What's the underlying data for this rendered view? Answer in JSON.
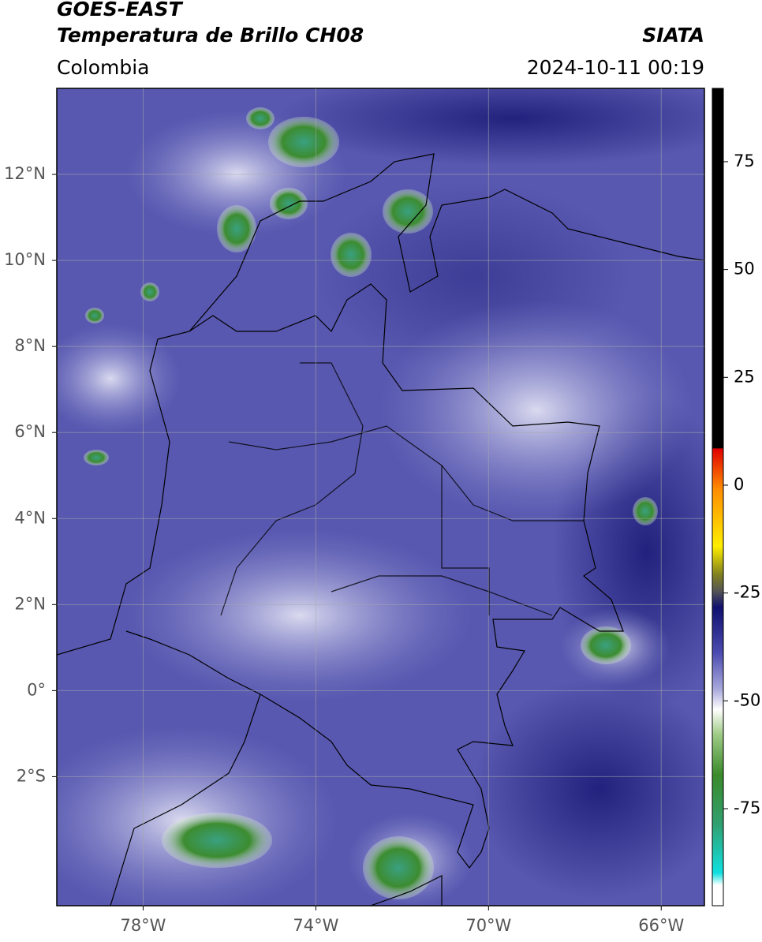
{
  "header": {
    "title": "GOES-EAST",
    "subtitle": "Temperatura de Brillo CH08",
    "region": "Colombia",
    "source": "SIATA",
    "datetime": "2024-10-11 00:19"
  },
  "map": {
    "xlim": [
      -80,
      -65
    ],
    "ylim": [
      -5,
      14
    ],
    "xticks": [
      {
        "value": -78,
        "label": "78°W"
      },
      {
        "value": -74,
        "label": "74°W"
      },
      {
        "value": -70,
        "label": "70°W"
      },
      {
        "value": -66,
        "label": "66°W"
      }
    ],
    "yticks": [
      {
        "value": 12,
        "label": "12°N"
      },
      {
        "value": 10,
        "label": "10°N"
      },
      {
        "value": 8,
        "label": "8°N"
      },
      {
        "value": 6,
        "label": "6°N"
      },
      {
        "value": 4,
        "label": "4°N"
      },
      {
        "value": 2,
        "label": "2°N"
      },
      {
        "value": 0,
        "label": "0°"
      },
      {
        "value": -2,
        "label": "2°S"
      }
    ],
    "grid": true
  },
  "colorbar": {
    "lim": [
      -97.5,
      92
    ],
    "ticks": [
      75,
      50,
      25,
      0,
      -25,
      -50,
      -75
    ]
  }
}
